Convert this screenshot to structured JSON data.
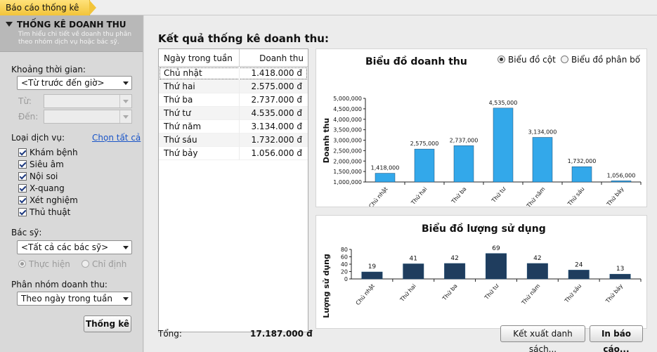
{
  "tab": {
    "title": "Báo cáo thống kê"
  },
  "sidebar": {
    "title": "THỐNG KÊ DOANH THU",
    "description": "Tìm hiểu chi tiết về doanh thu phân theo nhóm dịch vụ hoặc bác sỹ.",
    "time_label": "Khoảng thời gian:",
    "time_value": "<Từ trước đến giờ>",
    "from_label": "Từ:",
    "to_label": "Đến:",
    "service_label": "Loại dịch vụ:",
    "select_all": "Chọn tất cả",
    "services": [
      {
        "label": "Khám bệnh",
        "checked": true
      },
      {
        "label": "Siêu âm",
        "checked": true
      },
      {
        "label": "Nội soi",
        "checked": true
      },
      {
        "label": "X-quang",
        "checked": true
      },
      {
        "label": "Xét nghiệm",
        "checked": true
      },
      {
        "label": "Thủ thuật",
        "checked": true
      }
    ],
    "doctor_label": "Bác sỹ:",
    "doctor_value": "<Tất cả các bác sỹ>",
    "radio_perform": "Thực hiện",
    "radio_assign": "Chỉ định",
    "group_label": "Phân nhóm doanh thu:",
    "group_value": "Theo ngày trong tuần",
    "stat_button": "Thống kê"
  },
  "main": {
    "title": "Kết quả thống kê doanh thu:",
    "table": {
      "headers": [
        "Ngày trong tuần",
        "Doanh thu"
      ],
      "rows": [
        [
          "Chủ nhật",
          "1.418.000 đ"
        ],
        [
          "Thứ hai",
          "2.575.000 đ"
        ],
        [
          "Thứ ba",
          "2.737.000 đ"
        ],
        [
          "Thứ tư",
          "4.535.000 đ"
        ],
        [
          "Thứ năm",
          "3.134.000 đ"
        ],
        [
          "Thứ sáu",
          "1.732.000 đ"
        ],
        [
          "Thứ bảy",
          "1.056.000 đ"
        ]
      ]
    },
    "total_label": "Tổng:",
    "total_value": "17.187.000 đ",
    "export_button": "Kết xuất danh sách...",
    "print_button": "In báo cáo...",
    "chart_toggle": {
      "bar": "Biểu đồ cột",
      "dist": "Biểu đồ phân bố",
      "selected": "bar"
    }
  },
  "colors": {
    "revenue_bar": "#33a8ea",
    "usage_bar": "#1f3d5e",
    "tab": "#f2c43a"
  },
  "chart_data": [
    {
      "type": "bar",
      "title": "Biểu đồ doanh thu",
      "ylabel": "Doanh thu",
      "xlabel": "",
      "categories": [
        "Chủ nhật",
        "Thứ hai",
        "Thứ ba",
        "Thứ tư",
        "Thứ năm",
        "Thứ sáu",
        "Thứ bảy"
      ],
      "values": [
        1418000,
        2575000,
        2737000,
        4535000,
        3134000,
        1732000,
        1056000
      ],
      "value_labels": [
        "1,418,000",
        "2,575,000",
        "2,737,000",
        "4,535,000",
        "3,134,000",
        "1,732,000",
        "1,056,000"
      ],
      "yticks": [
        1000000,
        1500000,
        2000000,
        2500000,
        3000000,
        3500000,
        4000000,
        4500000,
        5000000
      ],
      "ytick_labels": [
        "1,000,000",
        "1,500,000",
        "2,000,000",
        "2,500,000",
        "3,000,000",
        "3,500,000",
        "4,000,000",
        "4,500,000",
        "5,000,000"
      ],
      "ylim": [
        1000000,
        5000000
      ]
    },
    {
      "type": "bar",
      "title": "Biểu đồ lượng sử dụng",
      "ylabel": "Lượng sử dụng",
      "xlabel": "",
      "categories": [
        "Chủ nhật",
        "Thứ hai",
        "Thứ ba",
        "Thứ tư",
        "Thứ năm",
        "Thứ sáu",
        "Thứ bảy"
      ],
      "values": [
        19,
        41,
        42,
        69,
        42,
        24,
        13
      ],
      "value_labels": [
        "19",
        "41",
        "42",
        "69",
        "42",
        "24",
        "13"
      ],
      "yticks": [
        0,
        20,
        40,
        60,
        80
      ],
      "ytick_labels": [
        "0",
        "20",
        "40",
        "60",
        "80"
      ],
      "ylim": [
        0,
        80
      ]
    }
  ]
}
